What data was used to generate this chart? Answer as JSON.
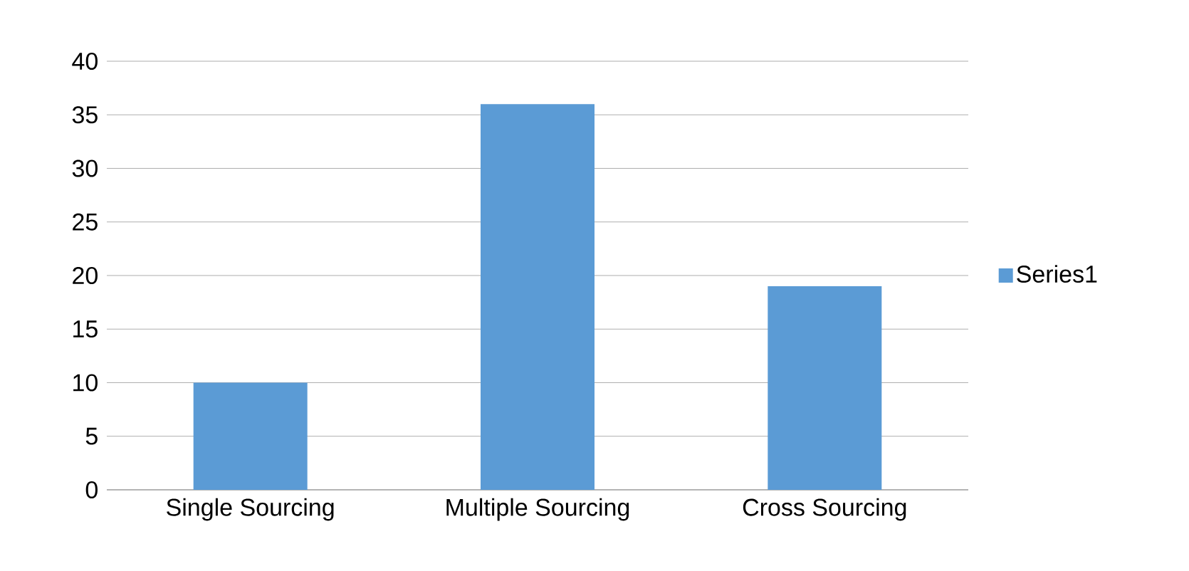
{
  "chart_data": {
    "type": "bar",
    "categories": [
      "Single Sourcing",
      "Multiple Sourcing",
      "Cross Sourcing"
    ],
    "series": [
      {
        "name": "Series1",
        "color": "#5b9bd5",
        "values": [
          10,
          36,
          19
        ]
      }
    ],
    "ylim": [
      0,
      40
    ],
    "yticks": [
      0,
      5,
      10,
      15,
      20,
      25,
      30,
      35,
      40
    ],
    "grid": "y",
    "legend": "right"
  }
}
